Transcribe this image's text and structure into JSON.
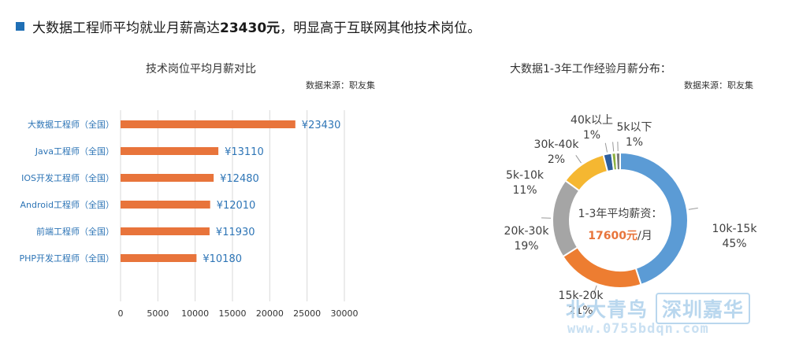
{
  "headline": {
    "prefix": "大数据工程师平均就业月薪高达",
    "highlight": "23430元",
    "suffix": "，明显高于互联网其他技术岗位。",
    "marker_color": "#1f6fb5"
  },
  "watermark": {
    "text1": "北大青鸟",
    "text2": "深圳嘉华",
    "url": "www.0755bdqn.com"
  },
  "chart_data": [
    {
      "type": "bar",
      "orientation": "horizontal",
      "title": "技术岗位平均月薪对比",
      "source": "数据来源：职友集",
      "categories": [
        "大数据工程师（全国）",
        "Java工程师（全国）",
        "IOS开发工程师（全国）",
        "Android工程师（全国）",
        "前端工程师（全国）",
        "PHP开发工程师（全国）"
      ],
      "values": [
        23430,
        13110,
        12480,
        12010,
        11930,
        10180
      ],
      "value_labels": [
        "¥23430",
        "¥13110",
        "¥12480",
        "¥12010",
        "¥11930",
        "¥10180"
      ],
      "xlim": [
        0,
        30000
      ],
      "xticks": [
        "0",
        "5000",
        "10000",
        "15000",
        "20000",
        "25000",
        "30000"
      ],
      "grid": "vertical",
      "bar_color": "#e8743b",
      "label_color": "#2e75b6"
    },
    {
      "type": "pie",
      "variant": "donut",
      "title": "大数据1-3年工作经验月薪分布：",
      "source": "数据来源：职友集",
      "center_label": "1-3年平均薪资：",
      "center_value": "17600元",
      "center_unit": "/月",
      "center_value_color": "#e8743b",
      "slices": [
        {
          "label": "10k-15k",
          "percent_label": "45%",
          "value": 45,
          "color": "#5b9bd5"
        },
        {
          "label": "15k-20k",
          "percent_label": "21%",
          "value": 21,
          "color": "#ed7d31"
        },
        {
          "label": "20k-30k",
          "percent_label": "19%",
          "value": 19,
          "color": "#a5a5a5"
        },
        {
          "label": "5k-10k",
          "percent_label": "11%",
          "value": 11,
          "color": "#f5b731"
        },
        {
          "label": "30k-40k",
          "percent_label": "2%",
          "value": 2,
          "color": "#2f5f9e"
        },
        {
          "label": "40k以上",
          "percent_label": "1%",
          "value": 1,
          "color": "#8db03f"
        },
        {
          "label": "5k以下",
          "percent_label": "1%",
          "value": 1,
          "color": "#7d7d7d"
        }
      ]
    }
  ]
}
